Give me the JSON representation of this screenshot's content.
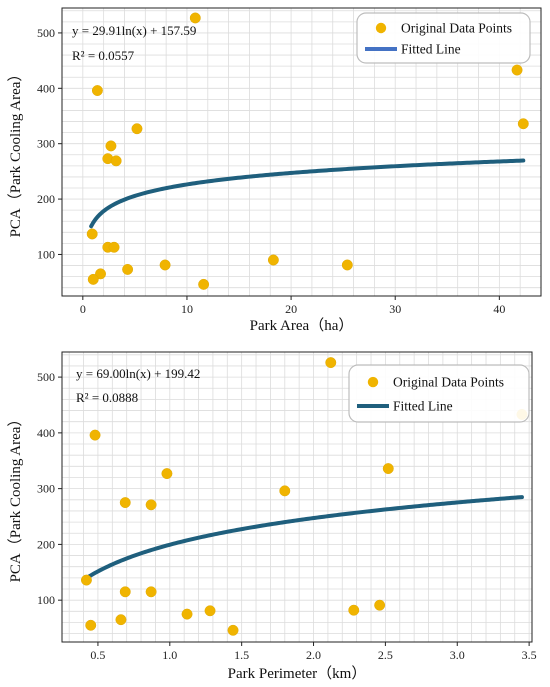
{
  "chart_data": [
    {
      "type": "scatter",
      "id": "area",
      "title": "",
      "xlabel": "Park Area（ha）",
      "ylabel": "PCA（Park Cooling Area）",
      "xlim": [
        -2,
        44
      ],
      "ylim": [
        25,
        545
      ],
      "xticks": [
        0,
        10,
        20,
        30,
        40
      ],
      "yticks": [
        100,
        200,
        300,
        400,
        500
      ],
      "grid": true,
      "legend_position": "top-right",
      "annotations": [
        "y = 29.91ln(x) + 157.59",
        "R² = 0.0557"
      ],
      "legend": [
        "Original Data Points",
        "Fitted Line"
      ],
      "point_color": "#F0B400",
      "line_color": "#1F5F7D",
      "legend_line_color": "#4472C4",
      "fit": {
        "a": 29.91,
        "b": 157.59,
        "x_range": [
          0.8,
          42.3
        ]
      },
      "points": [
        [
          10.8,
          527
        ],
        [
          1.4,
          396
        ],
        [
          41.7,
          433
        ],
        [
          42.3,
          336
        ],
        [
          5.2,
          327
        ],
        [
          2.7,
          296
        ],
        [
          2.4,
          273
        ],
        [
          3.2,
          269
        ],
        [
          0.9,
          137
        ],
        [
          2.4,
          113
        ],
        [
          3.0,
          113
        ],
        [
          18.3,
          90
        ],
        [
          7.9,
          81
        ],
        [
          25.4,
          81
        ],
        [
          4.3,
          73
        ],
        [
          1.7,
          65
        ],
        [
          1.0,
          55
        ],
        [
          11.6,
          46
        ]
      ]
    },
    {
      "type": "scatter",
      "id": "perimeter",
      "title": "",
      "xlabel": "Park Perimeter（km）",
      "ylabel": "PCA（Park Cooling Area）",
      "xlim": [
        0.25,
        3.52
      ],
      "ylim": [
        25,
        545
      ],
      "xticks": [
        0.5,
        1.0,
        1.5,
        2.0,
        2.5,
        3.0,
        3.5
      ],
      "yticks": [
        100,
        200,
        300,
        400,
        500
      ],
      "grid": true,
      "legend_position": "top-right",
      "annotations": [
        "y = 69.00ln(x) + 199.42",
        "R² = 0.0888"
      ],
      "legend": [
        "Original Data Points",
        "Fitted Line"
      ],
      "point_color": "#F0B400",
      "line_color": "#1F5F7D",
      "legend_line_color": "#1F5F7D",
      "fit": {
        "a": 69.0,
        "b": 199.42,
        "x_range": [
          0.42,
          3.45
        ]
      },
      "points": [
        [
          2.12,
          526
        ],
        [
          0.48,
          396
        ],
        [
          3.45,
          433
        ],
        [
          2.52,
          336
        ],
        [
          0.98,
          327
        ],
        [
          1.8,
          296
        ],
        [
          0.69,
          275
        ],
        [
          0.87,
          271
        ],
        [
          0.42,
          136
        ],
        [
          0.69,
          115
        ],
        [
          0.87,
          115
        ],
        [
          2.46,
          91
        ],
        [
          1.28,
          81
        ],
        [
          2.28,
          82
        ],
        [
          1.12,
          75
        ],
        [
          0.66,
          65
        ],
        [
          0.45,
          55
        ],
        [
          1.44,
          46
        ]
      ]
    }
  ]
}
